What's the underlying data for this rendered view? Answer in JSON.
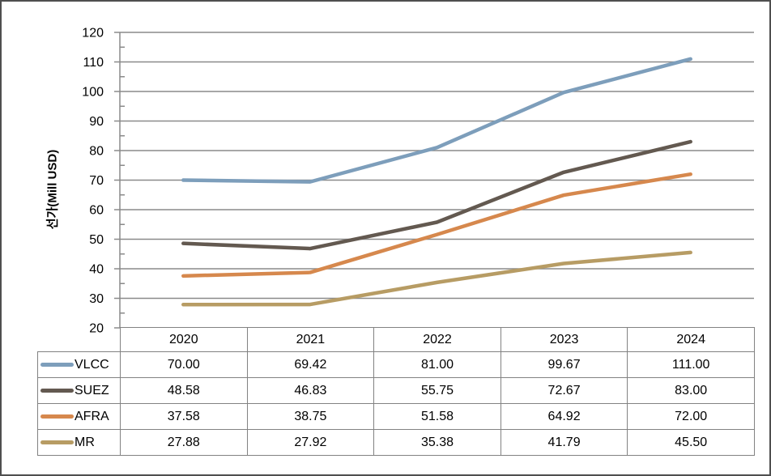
{
  "chart_data": {
    "type": "line",
    "title": "",
    "xlabel": "",
    "ylabel": "선가(Mill USD)",
    "categories": [
      "2020",
      "2021",
      "2022",
      "2023",
      "2024"
    ],
    "series": [
      {
        "name": "VLCC",
        "color": "#7D9EBB",
        "values": [
          "70.00",
          "69.42",
          "81.00",
          "99.67",
          "111.00"
        ]
      },
      {
        "name": "SUEZ",
        "color": "#635950",
        "values": [
          "48.58",
          "46.83",
          "55.75",
          "72.67",
          "83.00"
        ]
      },
      {
        "name": "AFRA",
        "color": "#D6884D",
        "values": [
          "37.58",
          "38.75",
          "51.58",
          "64.92",
          "72.00"
        ]
      },
      {
        "name": "MR",
        "color": "#B79C64",
        "values": [
          "27.88",
          "27.92",
          "35.38",
          "41.79",
          "45.50"
        ]
      }
    ],
    "ylim": [
      20,
      120
    ],
    "ytick_step": 10,
    "yminor_step": 5,
    "grid": true,
    "legend_position": "data-table-left",
    "data_table_shown": true
  },
  "colors": {
    "background": "#FFFFFF",
    "text": "#000000",
    "gridline": "#8A8A8A",
    "axis": "#8A8A8A",
    "table_border": "#828282",
    "frame_border": "#4F4F4F"
  }
}
